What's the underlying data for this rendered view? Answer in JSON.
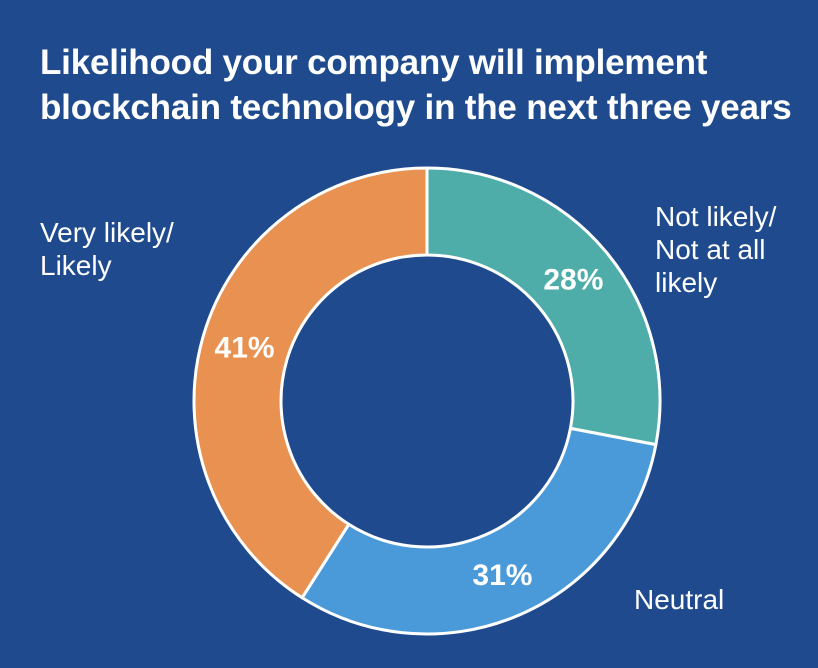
{
  "chart_data": {
    "type": "pie",
    "variant": "donut",
    "title_lines": [
      "Likelihood your company will implement",
      "blockchain technology in the next three years"
    ],
    "categories": [
      "Not likely/ Not at all likely",
      "Neutral",
      "Very likely/ Likely"
    ],
    "category_label_lines": [
      [
        "Not likely/",
        "Not at all",
        "likely"
      ],
      [
        "Neutral"
      ],
      [
        "Very likely/",
        "Likely"
      ]
    ],
    "values": [
      28,
      31,
      41
    ],
    "value_labels": [
      "28%",
      "31%",
      "41%"
    ],
    "unit": "%",
    "colors": [
      "#4fada9",
      "#4a9ada",
      "#e89150"
    ],
    "legend": "none",
    "start_angle_deg": 0,
    "direction": "clockwise"
  },
  "style": {
    "background": "#1f4b8e",
    "separator_color": "#ffffff",
    "text_color": "#ffffff"
  }
}
